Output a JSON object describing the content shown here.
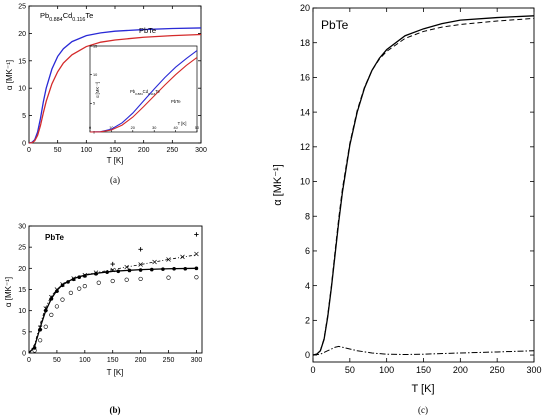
{
  "chart_data": [
    {
      "panel": "a",
      "type": "line",
      "caption": "(a)",
      "xlabel": "T [K]",
      "ylabel": "α [MK⁻¹]",
      "xlim": [
        0,
        300
      ],
      "ylim": [
        0,
        25
      ],
      "xticks": [
        0,
        50,
        100,
        150,
        200,
        250,
        300
      ],
      "yticks": [
        0,
        5,
        10,
        15,
        20,
        25
      ],
      "series": [
        {
          "name": "Pb0.884Cd0.116Te",
          "name_parts": [
            "Pb",
            "0.884",
            "Cd",
            "0.116",
            "Te"
          ],
          "color": "#2a2ad6",
          "x": [
            0,
            5,
            10,
            15,
            20,
            25,
            30,
            40,
            50,
            60,
            75,
            100,
            125,
            150,
            200,
            250,
            300
          ],
          "y": [
            0,
            0.1,
            0.6,
            2.0,
            4.5,
            7.5,
            10.0,
            13.5,
            15.8,
            17.2,
            18.5,
            19.6,
            20.1,
            20.4,
            20.7,
            20.9,
            21.0
          ]
        },
        {
          "name": "PbTe",
          "name_parts": [
            "PbTe"
          ],
          "color": "#d42a2a",
          "x": [
            0,
            5,
            10,
            15,
            20,
            25,
            30,
            40,
            50,
            60,
            75,
            100,
            125,
            150,
            200,
            250,
            300
          ],
          "y": [
            0,
            0.05,
            0.4,
            1.4,
            3.2,
            5.5,
            7.6,
            10.8,
            13.0,
            14.6,
            16.1,
            17.6,
            18.4,
            18.8,
            19.3,
            19.6,
            19.8
          ]
        }
      ],
      "inset": {
        "xlabel": "T [K]",
        "ylabel": "α [MK⁻¹]",
        "xlim": [
          0,
          50
        ],
        "ylim": [
          0,
          15
        ],
        "xticks": [
          0,
          10,
          20,
          30,
          40,
          50
        ],
        "yticks": [
          0,
          5,
          10,
          15
        ],
        "labels": [
          {
            "parts": [
              "Pb",
              "0.884",
              "Cd",
              "0.116",
              "Te"
            ],
            "color": "#000000"
          },
          {
            "parts": [
              "PbTe"
            ],
            "color": "#000000"
          }
        ],
        "series": [
          {
            "color": "#2a2ad6",
            "x": [
              0,
              5,
              10,
              15,
              20,
              25,
              30,
              35,
              40,
              45,
              50
            ],
            "y": [
              0,
              0.05,
              0.5,
              1.6,
              3.3,
              5.4,
              7.5,
              9.5,
              11.3,
              12.8,
              14.2
            ]
          },
          {
            "color": "#d42a2a",
            "x": [
              0,
              5,
              10,
              15,
              20,
              25,
              30,
              35,
              40,
              45,
              50
            ],
            "y": [
              0,
              0.03,
              0.35,
              1.2,
              2.6,
              4.4,
              6.3,
              8.2,
              10.0,
              11.6,
              13.0
            ]
          }
        ]
      }
    },
    {
      "panel": "b",
      "type": "scatter",
      "caption": "(b)",
      "title": "PbTe",
      "xlabel": "T [K]",
      "ylabel": "α [MK⁻¹]",
      "xlim": [
        0,
        310
      ],
      "ylim": [
        0,
        30
      ],
      "xticks": [
        0,
        50,
        100,
        150,
        200,
        250,
        300
      ],
      "yticks": [
        0,
        5,
        10,
        15,
        20,
        25,
        30
      ],
      "series": [
        {
          "style": "line-solid",
          "x": [
            0,
            10,
            20,
            30,
            40,
            50,
            60,
            80,
            100,
            125,
            150,
            200,
            250,
            300
          ],
          "y": [
            0,
            1.5,
            6.0,
            10.0,
            12.8,
            14.8,
            16.1,
            17.6,
            18.4,
            18.9,
            19.3,
            19.7,
            19.9,
            20.0
          ]
        },
        {
          "style": "line-dashdot",
          "x": [
            0,
            10,
            20,
            30,
            40,
            60,
            80,
            100,
            150,
            200,
            250,
            300
          ],
          "y": [
            0,
            2.0,
            6.8,
            10.8,
            13.5,
            16.3,
            17.6,
            18.5,
            19.7,
            20.9,
            22.1,
            23.2
          ]
        },
        {
          "style": "filled-circle",
          "x": [
            10,
            20,
            30,
            40,
            50,
            60,
            70,
            80,
            90,
            100,
            120,
            140,
            160,
            180,
            200,
            220,
            240,
            260,
            280,
            300
          ],
          "y": [
            1.2,
            5.5,
            10.0,
            12.8,
            14.6,
            16.0,
            16.8,
            17.4,
            17.9,
            18.2,
            18.7,
            19.1,
            19.3,
            19.5,
            19.6,
            19.7,
            19.8,
            19.9,
            19.9,
            20.0
          ]
        },
        {
          "style": "open-circle",
          "x": [
            10,
            20,
            30,
            40,
            50,
            60,
            75,
            90,
            100,
            125,
            150,
            175,
            200,
            250,
            300
          ],
          "y": [
            0.6,
            3.0,
            6.2,
            9.0,
            11.0,
            12.6,
            14.2,
            15.2,
            15.8,
            16.6,
            17.0,
            17.3,
            17.5,
            17.8,
            17.9
          ]
        },
        {
          "style": "cross",
          "x": [
            20,
            30,
            40,
            50,
            60,
            80,
            100,
            120,
            150,
            175,
            200,
            225,
            250,
            275,
            300
          ],
          "y": [
            6.0,
            10.5,
            13.2,
            15.0,
            16.2,
            17.6,
            18.4,
            19.0,
            19.6,
            20.3,
            20.9,
            21.5,
            22.1,
            22.7,
            23.4
          ]
        },
        {
          "style": "plus",
          "x": [
            150,
            200,
            300
          ],
          "y": [
            21.0,
            24.5,
            28.0
          ]
        }
      ]
    },
    {
      "panel": "c",
      "type": "line",
      "caption": "(c)",
      "title": "PbTe",
      "xlabel": "T [K]",
      "ylabel": "α [MK⁻¹]",
      "xlim": [
        0,
        300
      ],
      "ylim": [
        -0.4,
        20
      ],
      "xticks": [
        0,
        50,
        100,
        150,
        200,
        250,
        300
      ],
      "yticks": [
        0,
        2,
        4,
        6,
        8,
        10,
        12,
        14,
        16,
        18,
        20
      ],
      "series": [
        {
          "style": "solid",
          "x": [
            0,
            5,
            10,
            15,
            20,
            25,
            30,
            35,
            40,
            50,
            60,
            70,
            80,
            90,
            100,
            125,
            150,
            175,
            200,
            250,
            300
          ],
          "y": [
            0,
            0.05,
            0.25,
            0.9,
            2.2,
            3.9,
            5.8,
            7.7,
            9.4,
            12.1,
            14.0,
            15.4,
            16.4,
            17.1,
            17.6,
            18.4,
            18.8,
            19.1,
            19.3,
            19.45,
            19.55
          ]
        },
        {
          "style": "dashed",
          "x": [
            0,
            5,
            10,
            15,
            20,
            25,
            30,
            35,
            40,
            50,
            60,
            70,
            80,
            90,
            100,
            125,
            150,
            175,
            200,
            250,
            300
          ],
          "y": [
            0,
            0.05,
            0.25,
            0.95,
            2.3,
            4.0,
            6.0,
            7.9,
            9.6,
            12.2,
            14.1,
            15.45,
            16.4,
            17.05,
            17.5,
            18.25,
            18.65,
            18.9,
            19.05,
            19.25,
            19.4
          ]
        },
        {
          "style": "dashdot",
          "x": [
            0,
            10,
            20,
            30,
            35,
            40,
            50,
            60,
            80,
            100,
            125,
            150,
            200,
            250,
            300
          ],
          "y": [
            0,
            0.05,
            0.25,
            0.45,
            0.5,
            0.45,
            0.35,
            0.25,
            0.12,
            0.05,
            0.03,
            0.05,
            0.12,
            0.18,
            0.25
          ]
        }
      ]
    }
  ]
}
